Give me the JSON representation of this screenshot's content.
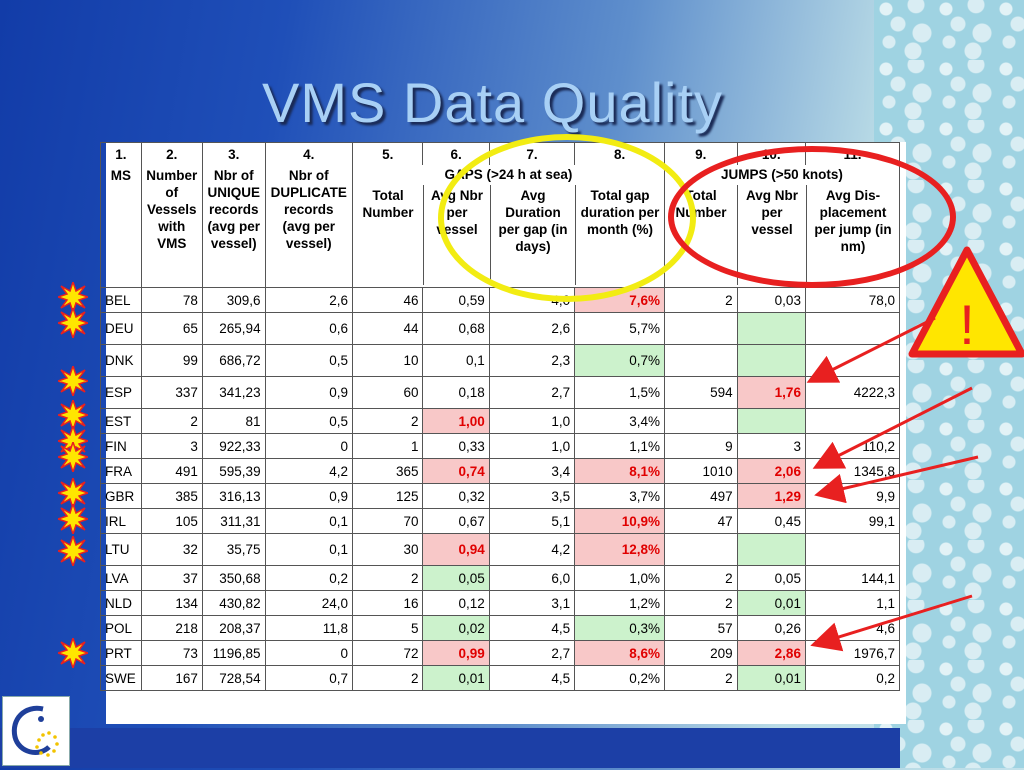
{
  "title": "VMS Data Quality",
  "colors": {
    "alert_text": "#e00000",
    "bad_cell": "#f8c8c8",
    "good_cell": "#ccf2cc",
    "ring_yellow": "#f2ec12",
    "ring_red": "#e82020"
  },
  "warning_symbol": "!",
  "icons": [
    "warning-triangle-icon",
    "starburst-icon",
    "red-arrow-icon",
    "logo-icon"
  ],
  "column_numbers": [
    "1.",
    "2.",
    "3.",
    "4.",
    "5.",
    "6.",
    "7.",
    "8.",
    "9.",
    "10.",
    "11."
  ],
  "headers": {
    "ms": "MS",
    "vessels": "Number of Vessels with VMS",
    "unique": "Nbr of UNIQUE records (avg per vessel)",
    "duplicate": "Nbr of DUPLICATE records (avg per vessel)",
    "gaps_group": "GAPS (>24 h at sea)",
    "gaps_total": "Total Number",
    "gaps_avg": "Avg Nbr per vessel",
    "gaps_duration": "Avg Duration per gap (in days)",
    "gaps_month": "Total gap duration per month (%)",
    "jumps_group": "JUMPS (>50 knots)",
    "jumps_total": "Total Number",
    "jumps_avg": "Avg Nbr per vessel",
    "jumps_disp": "Avg Dis-placement per jump (in nm)"
  },
  "rows": [
    {
      "ms": "BEL",
      "vessels": "78",
      "unique": "309,6",
      "dup": "2,6",
      "gap_total": "46",
      "gap_avg": "0,59",
      "gap_dur": "4,0",
      "gap_month": "7,6%",
      "jump_total": "2",
      "jump_avg": "0,03",
      "jump_disp": "78,0"
    },
    {
      "ms": "DEU",
      "vessels": "65",
      "unique": "265,94",
      "dup": "0,6",
      "gap_total": "44",
      "gap_avg": "0,68",
      "gap_dur": "2,6",
      "gap_month": "5,7%",
      "jump_total": "",
      "jump_avg": "",
      "jump_disp": ""
    },
    {
      "ms": "DNK",
      "vessels": "99",
      "unique": "686,72",
      "dup": "0,5",
      "gap_total": "10",
      "gap_avg": "0,1",
      "gap_dur": "2,3",
      "gap_month": "0,7%",
      "jump_total": "",
      "jump_avg": "",
      "jump_disp": ""
    },
    {
      "ms": "ESP",
      "vessels": "337",
      "unique": "341,23",
      "dup": "0,9",
      "gap_total": "60",
      "gap_avg": "0,18",
      "gap_dur": "2,7",
      "gap_month": "1,5%",
      "jump_total": "594",
      "jump_avg": "1,76",
      "jump_disp": "4222,3"
    },
    {
      "ms": "EST",
      "vessels": "2",
      "unique": "81",
      "dup": "0,5",
      "gap_total": "2",
      "gap_avg": "1,00",
      "gap_dur": "1,0",
      "gap_month": "3,4%",
      "jump_total": "",
      "jump_avg": "",
      "jump_disp": ""
    },
    {
      "ms": "FIN",
      "vessels": "3",
      "unique": "922,33",
      "dup": "0",
      "gap_total": "1",
      "gap_avg": "0,33",
      "gap_dur": "1,0",
      "gap_month": "1,1%",
      "jump_total": "9",
      "jump_avg": "3",
      "jump_disp": "110,2"
    },
    {
      "ms": "FRA",
      "vessels": "491",
      "unique": "595,39",
      "dup": "4,2",
      "gap_total": "365",
      "gap_avg": "0,74",
      "gap_dur": "3,4",
      "gap_month": "8,1%",
      "jump_total": "1010",
      "jump_avg": "2,06",
      "jump_disp": "1345,8"
    },
    {
      "ms": "GBR",
      "vessels": "385",
      "unique": "316,13",
      "dup": "0,9",
      "gap_total": "125",
      "gap_avg": "0,32",
      "gap_dur": "3,5",
      "gap_month": "3,7%",
      "jump_total": "497",
      "jump_avg": "1,29",
      "jump_disp": "9,9"
    },
    {
      "ms": "IRL",
      "vessels": "105",
      "unique": "311,31",
      "dup": "0,1",
      "gap_total": "70",
      "gap_avg": "0,67",
      "gap_dur": "5,1",
      "gap_month": "10,9%",
      "jump_total": "47",
      "jump_avg": "0,45",
      "jump_disp": "99,1"
    },
    {
      "ms": "LTU",
      "vessels": "32",
      "unique": "35,75",
      "dup": "0,1",
      "gap_total": "30",
      "gap_avg": "0,94",
      "gap_dur": "4,2",
      "gap_month": "12,8%",
      "jump_total": "",
      "jump_avg": "",
      "jump_disp": ""
    },
    {
      "ms": "LVA",
      "vessels": "37",
      "unique": "350,68",
      "dup": "0,2",
      "gap_total": "2",
      "gap_avg": "0,05",
      "gap_dur": "6,0",
      "gap_month": "1,0%",
      "jump_total": "2",
      "jump_avg": "0,05",
      "jump_disp": "144,1"
    },
    {
      "ms": "NLD",
      "vessels": "134",
      "unique": "430,82",
      "dup": "24,0",
      "gap_total": "16",
      "gap_avg": "0,12",
      "gap_dur": "3,1",
      "gap_month": "1,2%",
      "jump_total": "2",
      "jump_avg": "0,01",
      "jump_disp": "1,1"
    },
    {
      "ms": "POL",
      "vessels": "218",
      "unique": "208,37",
      "dup": "11,8",
      "gap_total": "5",
      "gap_avg": "0,02",
      "gap_dur": "4,5",
      "gap_month": "0,3%",
      "jump_total": "57",
      "jump_avg": "0,26",
      "jump_disp": "4,6"
    },
    {
      "ms": "PRT",
      "vessels": "73",
      "unique": "1196,85",
      "dup": "0",
      "gap_total": "72",
      "gap_avg": "0,99",
      "gap_dur": "2,7",
      "gap_month": "8,6%",
      "jump_total": "209",
      "jump_avg": "2,86",
      "jump_disp": "1976,7"
    },
    {
      "ms": "SWE",
      "vessels": "167",
      "unique": "728,54",
      "dup": "0,7",
      "gap_total": "2",
      "gap_avg": "0,01",
      "gap_dur": "4,5",
      "gap_month": "0,2%",
      "jump_total": "2",
      "jump_avg": "0,01",
      "jump_disp": "0,2"
    }
  ]
}
